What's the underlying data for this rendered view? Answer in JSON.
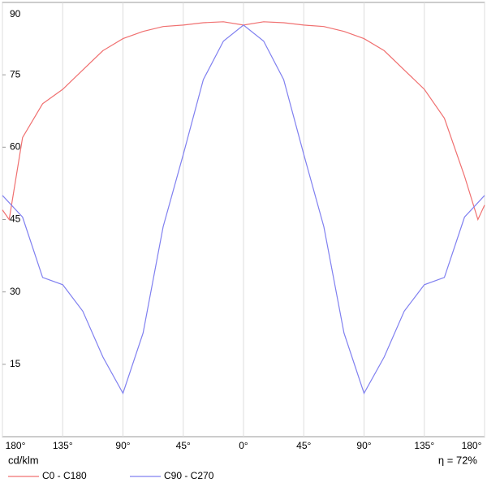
{
  "chart_data": {
    "type": "line",
    "x": [
      -180,
      -175,
      -165,
      -150,
      -135,
      -120,
      -105,
      -90,
      -75,
      -60,
      -45,
      -30,
      -15,
      0,
      15,
      30,
      45,
      60,
      75,
      90,
      105,
      120,
      135,
      150,
      165,
      175,
      180
    ],
    "series": [
      {
        "name": "C0 - C180",
        "color": "#f07070",
        "values": [
          47,
          45,
          62,
          69,
          72,
          76,
          80,
          82.5,
          84,
          85,
          85.3,
          85.8,
          86,
          85.3,
          86,
          85.8,
          85.3,
          85,
          84,
          82.5,
          80,
          76,
          72,
          66,
          54,
          45,
          48
        ]
      },
      {
        "name": "C90 - C270",
        "color": "#8080f0",
        "values": [
          50,
          48.5,
          45.5,
          33,
          31.5,
          26,
          16.5,
          9,
          21.5,
          43.5,
          58.5,
          74,
          82,
          85.3,
          82,
          74,
          58.5,
          43.5,
          21.5,
          9,
          16.5,
          26,
          31.5,
          33,
          45.5,
          48.5,
          50
        ]
      }
    ],
    "xlim": [
      -180,
      180
    ],
    "xticks": [
      {
        "value": -180,
        "label": "180°"
      },
      {
        "value": -135,
        "label": "135°"
      },
      {
        "value": -90,
        "label": "90°"
      },
      {
        "value": -45,
        "label": "45°"
      },
      {
        "value": 0,
        "label": "0°"
      },
      {
        "value": 45,
        "label": "45°"
      },
      {
        "value": 90,
        "label": "90°"
      },
      {
        "value": 135,
        "label": "135°"
      },
      {
        "value": 180,
        "label": "180°"
      }
    ],
    "ylim": [
      0,
      90
    ],
    "yticks": [
      15,
      30,
      45,
      60,
      75,
      90
    ],
    "y_label": "cd/klm",
    "annotation": "η = 72%",
    "grid": true
  }
}
